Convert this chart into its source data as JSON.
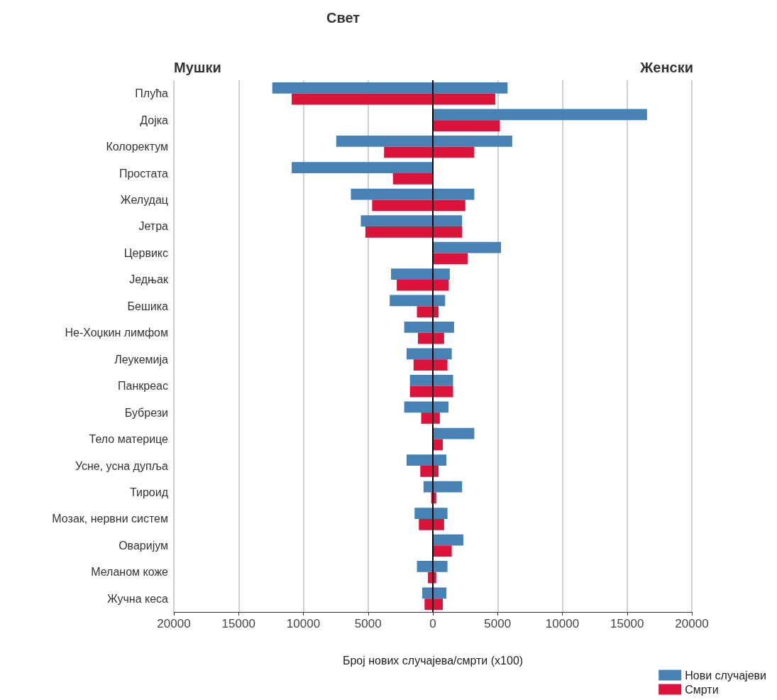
{
  "chart_data": {
    "type": "bar",
    "orientation": "horizontal",
    "title": "Свет",
    "xlabel": "Број нових случајева/смрти (x100)",
    "annotations": [
      "Мушки",
      "Женски"
    ],
    "categories": [
      "Плућа",
      "Дојка",
      "Колоректум",
      "Простата",
      "Желудац",
      "Јетра",
      "Цервикс",
      "Једњак",
      "Бешика",
      "Не-Хоџкин лимфом",
      "Леукемија",
      "Панкреас",
      "Бубрези",
      "Тело материце",
      "Усне, усна дупља",
      "Тироид",
      "Мозак, нервни систем",
      "Оваријум",
      "Меланом коже",
      "Жучна кеса"
    ],
    "series": [
      {
        "name": "Нови случајеви",
        "color": "#4682b4",
        "base": [
          -12400,
          0,
          -7460,
          -10900,
          -6330,
          -5560,
          0,
          -3230,
          -3330,
          -2210,
          -2030,
          -1770,
          -2210,
          0,
          -2030,
          -720,
          -1410,
          0,
          -1230,
          -820
        ],
        "values": [
          18170,
          16540,
          13590,
          10900,
          9530,
          7820,
          5260,
          4540,
          4280,
          3850,
          3490,
          3330,
          3420,
          3200,
          3080,
          2980,
          2540,
          2360,
          2360,
          1870
        ]
      },
      {
        "name": "Смрти",
        "color": "#dc143c",
        "base": [
          -10900,
          0,
          -3770,
          -3080,
          -4690,
          -5210,
          0,
          -2790,
          -1230,
          -1150,
          -1490,
          -1770,
          -900,
          0,
          -970,
          -130,
          -1080,
          0,
          -380,
          -640
        ],
        "values": [
          15720,
          5180,
          6970,
          3080,
          7200,
          7470,
          2690,
          4020,
          1670,
          2020,
          2620,
          3330,
          1440,
          770,
          1410,
          390,
          1950,
          1460,
          640,
          1410
        ]
      }
    ],
    "xlim": [
      -20000,
      20000
    ],
    "xticks": [
      {
        "value": -20000,
        "label": "20000"
      },
      {
        "value": -15000,
        "label": "15000"
      },
      {
        "value": -10000,
        "label": "10000"
      },
      {
        "value": -5000,
        "label": "5000"
      },
      0,
      5000,
      10000,
      15000,
      20000
    ],
    "ref_lines": [
      {
        "axis": "x",
        "value": 0,
        "color": "#000000"
      }
    ],
    "grid": "x",
    "legend": "bottom right"
  }
}
